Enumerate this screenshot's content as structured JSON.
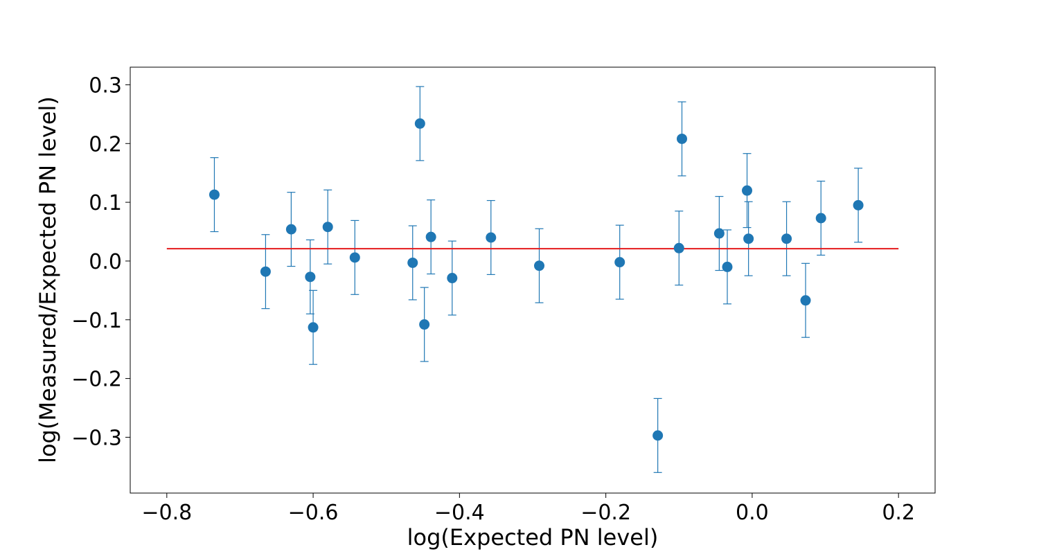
{
  "chart_data": {
    "type": "scatter",
    "title": "",
    "xlabel": "log(Expected PN level)",
    "ylabel": "log(Measured/Expected PN level)",
    "xlim": [
      -0.85,
      0.25
    ],
    "ylim": [
      -0.395,
      0.33
    ],
    "x_ticks": [
      -0.8,
      -0.6,
      -0.4,
      -0.2,
      0.0,
      0.2
    ],
    "x_tick_labels": [
      "−0.8",
      "−0.6",
      "−0.4",
      "−0.2",
      "0.0",
      "0.2"
    ],
    "y_ticks": [
      0.3,
      0.2,
      0.1,
      0.0,
      -0.1,
      -0.2,
      -0.3
    ],
    "y_tick_labels": [
      "0.3",
      "0.2",
      "0.1",
      "0.0",
      "−0.1",
      "−0.2",
      "−0.3"
    ],
    "grid": false,
    "point_color": "#1f77b4",
    "error": 0.063,
    "points": [
      {
        "x": -0.735,
        "y": 0.113
      },
      {
        "x": -0.665,
        "y": -0.018
      },
      {
        "x": -0.63,
        "y": 0.054
      },
      {
        "x": -0.604,
        "y": -0.027
      },
      {
        "x": -0.6,
        "y": -0.113
      },
      {
        "x": -0.58,
        "y": 0.058
      },
      {
        "x": -0.543,
        "y": 0.006
      },
      {
        "x": -0.464,
        "y": -0.003
      },
      {
        "x": -0.454,
        "y": 0.234
      },
      {
        "x": -0.448,
        "y": -0.108
      },
      {
        "x": -0.439,
        "y": 0.041
      },
      {
        "x": -0.41,
        "y": -0.029
      },
      {
        "x": -0.357,
        "y": 0.04
      },
      {
        "x": -0.291,
        "y": -0.008
      },
      {
        "x": -0.181,
        "y": -0.002
      },
      {
        "x": -0.129,
        "y": -0.297
      },
      {
        "x": -0.1,
        "y": 0.022
      },
      {
        "x": -0.096,
        "y": 0.208
      },
      {
        "x": -0.045,
        "y": 0.047
      },
      {
        "x": -0.034,
        "y": -0.01
      },
      {
        "x": -0.007,
        "y": 0.12
      },
      {
        "x": -0.005,
        "y": 0.038
      },
      {
        "x": 0.047,
        "y": 0.038
      },
      {
        "x": 0.073,
        "y": -0.067
      },
      {
        "x": 0.094,
        "y": 0.073
      },
      {
        "x": 0.145,
        "y": 0.095
      }
    ],
    "reference_line": {
      "x": [
        -0.8,
        0.2
      ],
      "y": [
        0.021,
        0.021
      ],
      "color": "#e41a1c"
    }
  }
}
